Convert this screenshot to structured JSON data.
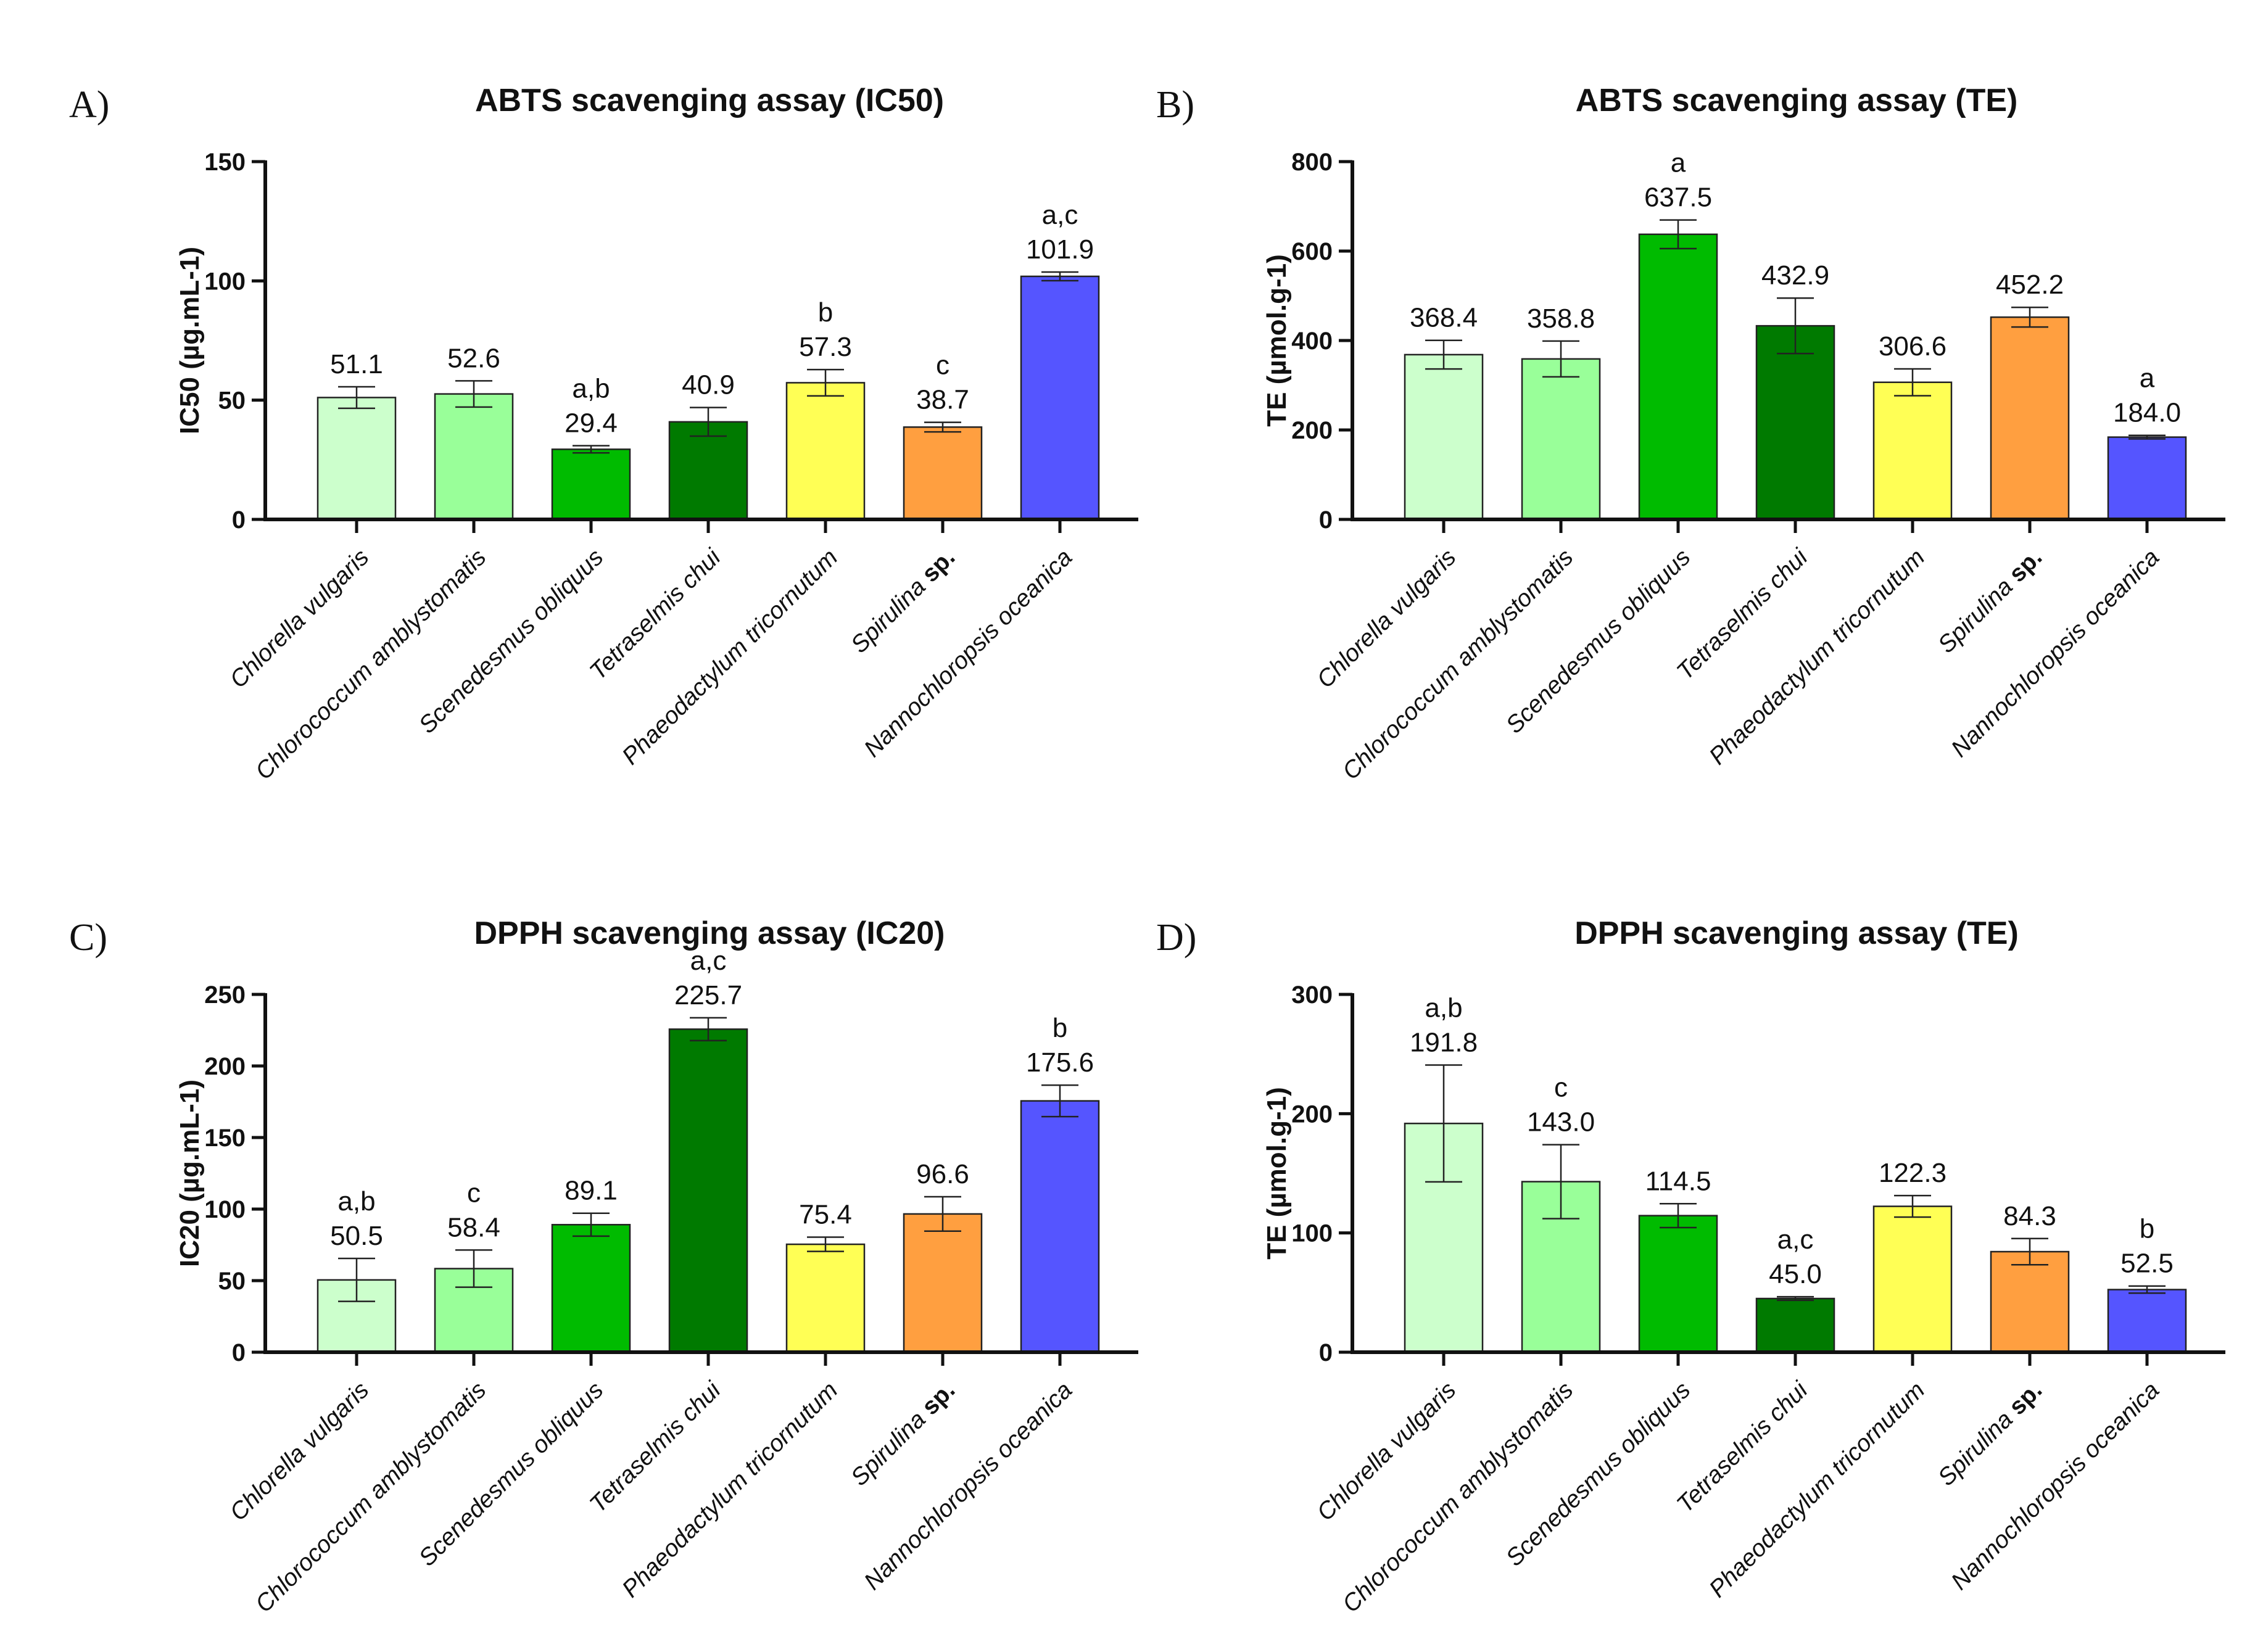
{
  "colors": [
    "#ccffcc",
    "#99ff99",
    "#00bb00",
    "#007a00",
    "#ffff55",
    "#ff9f40",
    "#5555ff"
  ],
  "categories": [
    {
      "italic": "Chlorella vulgaris",
      "suffix": ""
    },
    {
      "italic": "Chlorococcum amblystomatis",
      "suffix": ""
    },
    {
      "italic": "Scenedesmus obliquus",
      "suffix": ""
    },
    {
      "italic": "Tetraselmis chui",
      "suffix": ""
    },
    {
      "italic": "Phaeodactylum tricornutum",
      "suffix": ""
    },
    {
      "italic": "Spirulina",
      "suffix": "sp."
    },
    {
      "italic": "Nannochloropsis oceanica",
      "suffix": ""
    }
  ],
  "chart_data": [
    {
      "type": "bar",
      "panel": "A)",
      "title": "ABTS scavenging assay (IC50)",
      "ylabel": "IC50 (µg.mL-1)",
      "ylim": [
        0,
        150
      ],
      "yticks": [
        0,
        50,
        100,
        150
      ],
      "values": [
        51.1,
        52.6,
        29.4,
        40.9,
        57.3,
        38.7,
        101.9
      ],
      "errors": [
        4.5,
        5.5,
        1.5,
        6.0,
        5.5,
        2.0,
        1.8
      ],
      "labels": [
        "51.1",
        "52.6",
        "29.4",
        "40.9",
        "57.3",
        "38.7",
        "101.9"
      ],
      "significance": [
        "",
        "",
        "a,b",
        "",
        "b",
        "c",
        "a,c"
      ]
    },
    {
      "type": "bar",
      "panel": "B)",
      "title": "ABTS scavenging assay (TE)",
      "ylabel": "TE (µmol.g-1)",
      "ylim": [
        0,
        800
      ],
      "yticks": [
        0,
        200,
        400,
        600,
        800
      ],
      "values": [
        368.4,
        358.8,
        637.5,
        432.9,
        306.6,
        452.2,
        184.0
      ],
      "errors": [
        32,
        40,
        32,
        62,
        30,
        22,
        4
      ],
      "labels": [
        "368.4",
        "358.8",
        "637.5",
        "432.9",
        "306.6",
        "452.2",
        "184.0"
      ],
      "significance": [
        "",
        "",
        "a",
        "",
        "",
        "",
        "a"
      ]
    },
    {
      "type": "bar",
      "panel": "C)",
      "title": "DPPH scavenging assay (IC20)",
      "ylabel": "IC20 (µg.mL-1)",
      "ylim": [
        0,
        250
      ],
      "yticks": [
        0,
        50,
        100,
        150,
        200,
        250
      ],
      "values": [
        50.5,
        58.4,
        89.1,
        225.7,
        75.4,
        96.6,
        175.6
      ],
      "errors": [
        15,
        13,
        8,
        8,
        5,
        12,
        11
      ],
      "labels": [
        "50.5",
        "58.4",
        "89.1",
        "225.7",
        "75.4",
        "96.6",
        "175.6"
      ],
      "significance": [
        "a,b",
        "c",
        "",
        "a,c",
        "",
        "",
        "b"
      ]
    },
    {
      "type": "bar",
      "panel": "D)",
      "title": "DPPH scavenging assay (TE)",
      "ylabel": "TE (µmol.g-1)",
      "ylim": [
        0,
        300
      ],
      "yticks": [
        0,
        100,
        200,
        300
      ],
      "values": [
        191.8,
        143.0,
        114.5,
        45.0,
        122.3,
        84.3,
        52.5
      ],
      "errors": [
        49,
        31,
        10,
        1.5,
        9,
        11,
        3
      ],
      "labels": [
        "191.8",
        "143.0",
        "114.5",
        "45.0",
        "122.3",
        "84.3",
        "52.5"
      ],
      "significance": [
        "a,b",
        "c",
        "",
        "a,c",
        "",
        "",
        "b"
      ]
    }
  ]
}
